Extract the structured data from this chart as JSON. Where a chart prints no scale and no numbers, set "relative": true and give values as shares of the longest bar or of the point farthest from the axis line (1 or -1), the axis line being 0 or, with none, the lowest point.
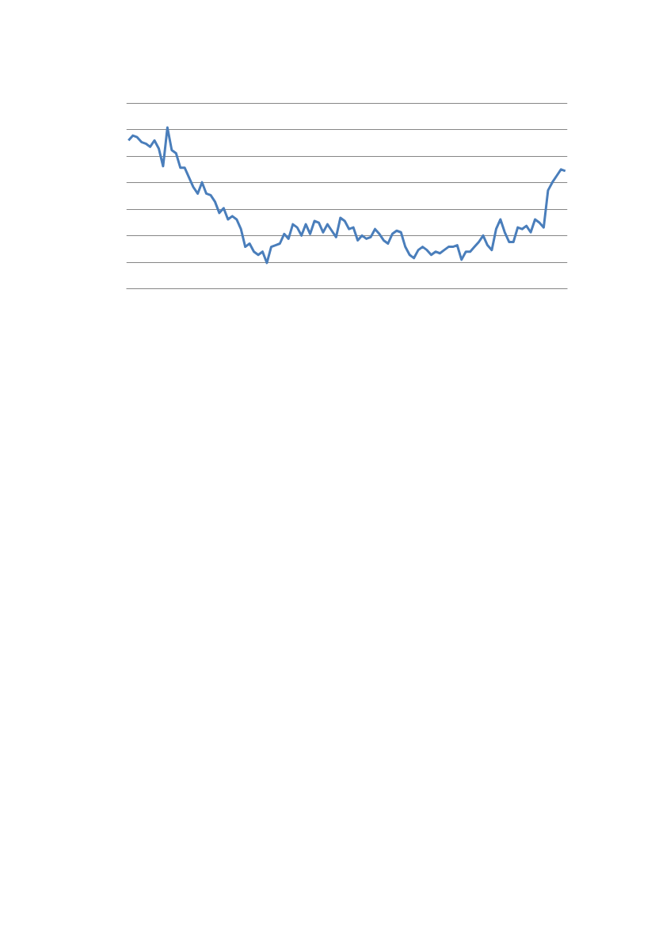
{
  "chart_data": {
    "type": "line",
    "relative": true,
    "grid": "y",
    "categories": [
      null,
      null,
      null,
      null,
      null,
      null,
      null,
      null,
      null,
      null,
      null,
      null,
      null,
      null,
      null,
      null,
      null,
      null,
      null,
      null,
      null,
      null,
      null,
      null,
      null,
      null,
      null,
      null,
      null,
      null,
      null,
      null,
      null,
      null,
      null,
      null,
      null,
      null,
      null,
      null,
      null,
      null,
      null,
      null,
      null,
      null,
      null,
      null,
      null,
      null,
      null,
      null,
      null,
      null,
      null,
      null,
      null,
      null,
      null,
      null,
      null,
      null,
      null,
      null,
      null,
      null,
      null,
      null,
      null,
      null,
      null,
      null,
      null,
      null,
      null,
      null,
      null,
      null,
      null,
      null,
      null,
      null,
      null,
      null,
      null,
      null,
      null,
      null,
      null,
      null,
      null,
      null,
      null,
      null,
      null,
      null,
      null,
      null,
      null,
      null,
      null,
      null
    ],
    "series": [
      {
        "color": "#4a7ebb",
        "values": [
          0.92,
          0.95,
          0.94,
          0.91,
          0.9,
          0.88,
          0.92,
          0.87,
          0.76,
          1.0,
          0.86,
          0.84,
          0.75,
          0.75,
          0.69,
          0.63,
          0.59,
          0.66,
          0.59,
          0.58,
          0.54,
          0.47,
          0.5,
          0.43,
          0.45,
          0.43,
          0.37,
          0.26,
          0.28,
          0.23,
          0.21,
          0.23,
          0.16,
          0.26,
          0.27,
          0.28,
          0.34,
          0.31,
          0.4,
          0.38,
          0.33,
          0.4,
          0.34,
          0.42,
          0.41,
          0.35,
          0.4,
          0.36,
          0.32,
          0.44,
          0.42,
          0.37,
          0.38,
          0.3,
          0.33,
          0.31,
          0.32,
          0.37,
          0.34,
          0.3,
          0.28,
          0.34,
          0.36,
          0.35,
          0.26,
          0.21,
          0.19,
          0.24,
          0.26,
          0.24,
          0.21,
          0.23,
          0.22,
          0.24,
          0.26,
          0.26,
          0.27,
          0.18,
          0.23,
          0.23,
          0.26,
          0.29,
          0.33,
          0.27,
          0.24,
          0.37,
          0.43,
          0.35,
          0.29,
          0.29,
          0.38,
          0.37,
          0.39,
          0.35,
          0.43,
          0.41,
          0.38,
          0.61,
          0.66,
          0.7,
          0.74,
          0.73
        ]
      }
    ]
  }
}
